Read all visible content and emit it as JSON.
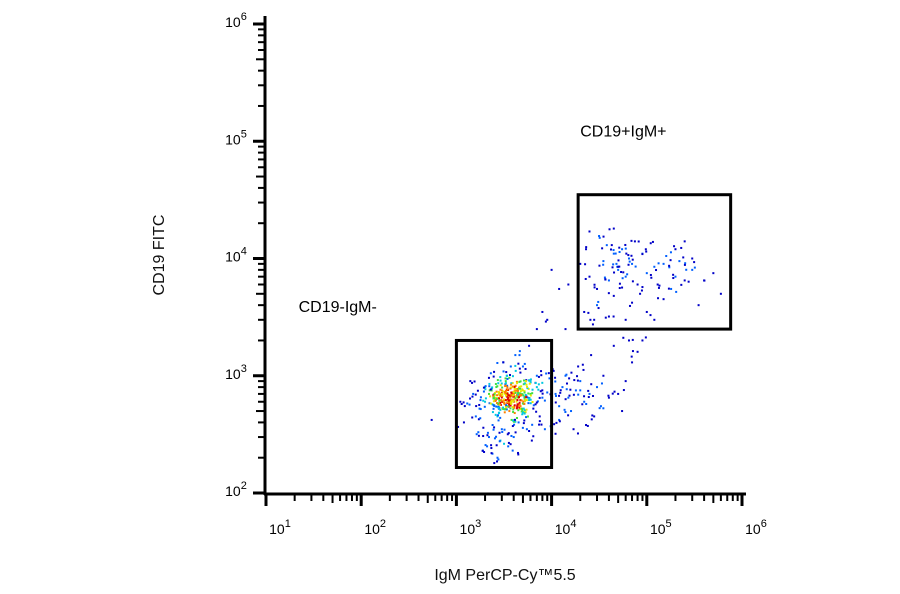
{
  "chart_data": {
    "type": "scatter",
    "subtype": "flow-cytometry density dot plot",
    "xlabel": "IgM PerCP-Cy™5.5",
    "ylabel": "CD19 FITC",
    "xscale": "log",
    "yscale": "log",
    "xlim": [
      10,
      1000000
    ],
    "ylim": [
      100,
      1000000
    ],
    "x_ticks": [
      "10^1",
      "10^2",
      "10^3",
      "10^4",
      "10^5",
      "10^6"
    ],
    "y_ticks": [
      "10^2",
      "10^3",
      "10^4",
      "10^5",
      "10^6"
    ],
    "grid": false,
    "density_colors": [
      "#0000c8",
      "#0060ff",
      "#00c8e0",
      "#40e040",
      "#e8e800",
      "#ff8000",
      "#e00000"
    ],
    "gates": [
      {
        "name": "lower-gate",
        "x": [
          1000,
          10000
        ],
        "y": [
          165,
          2000
        ]
      },
      {
        "name": "upper-gate",
        "x": [
          19000,
          760000
        ],
        "y": [
          2500,
          35000
        ]
      }
    ],
    "annotations": [
      {
        "text": "CD19+IgM+",
        "x": 20000,
        "y": 110000
      },
      {
        "text": "CD19-IgM-",
        "x": 22,
        "y": 3500
      }
    ],
    "points": [
      [
        3500,
        650
      ],
      [
        3000,
        700
      ],
      [
        4000,
        600
      ],
      [
        3800,
        720
      ],
      [
        3200,
        580
      ],
      [
        2800,
        640
      ],
      [
        4500,
        680
      ],
      [
        2500,
        560
      ],
      [
        5000,
        750
      ],
      [
        3600,
        500
      ],
      [
        4200,
        820
      ],
      [
        2200,
        700
      ],
      [
        3300,
        900
      ],
      [
        2700,
        450
      ],
      [
        6000,
        700
      ],
      [
        5500,
        620
      ],
      [
        4800,
        520
      ],
      [
        2000,
        600
      ],
      [
        1800,
        520
      ],
      [
        1600,
        450
      ],
      [
        2400,
        380
      ],
      [
        3000,
        350
      ],
      [
        3800,
        420
      ],
      [
        4500,
        400
      ],
      [
        5200,
        480
      ],
      [
        6500,
        560
      ],
      [
        7000,
        800
      ],
      [
        8000,
        650
      ],
      [
        9000,
        720
      ],
      [
        2600,
        850
      ],
      [
        3400,
        1000
      ],
      [
        4200,
        1100
      ],
      [
        5000,
        1200
      ],
      [
        2000,
        800
      ],
      [
        1500,
        700
      ],
      [
        1300,
        580
      ],
      [
        1200,
        400
      ],
      [
        1700,
        330
      ],
      [
        2200,
        300
      ],
      [
        2900,
        280
      ],
      [
        3500,
        250
      ],
      [
        4000,
        300
      ],
      [
        5500,
        350
      ],
      [
        7500,
        450
      ],
      [
        6000,
        900
      ],
      [
        1400,
        900
      ],
      [
        2300,
        1050
      ],
      [
        3100,
        1300
      ],
      [
        4600,
        1500
      ],
      [
        5800,
        1800
      ],
      [
        1100,
        600
      ],
      [
        1000,
        900
      ],
      [
        2100,
        250
      ],
      [
        2700,
        200
      ],
      [
        3900,
        230
      ],
      [
        6200,
        280
      ],
      [
        1900,
        230
      ],
      [
        2500,
        180
      ],
      [
        8500,
        350
      ],
      [
        7000,
        1000
      ],
      [
        3700,
        780
      ],
      [
        3300,
        620
      ],
      [
        4100,
        560
      ],
      [
        2900,
        760
      ],
      [
        4400,
        740
      ],
      [
        3600,
        680
      ],
      [
        3100,
        520
      ],
      [
        4700,
        620
      ],
      [
        2600,
        620
      ],
      [
        5300,
        860
      ],
      [
        11000,
        700
      ],
      [
        13000,
        800
      ],
      [
        15000,
        650
      ],
      [
        12000,
        550
      ],
      [
        18000,
        750
      ],
      [
        20000,
        900
      ],
      [
        25000,
        700
      ],
      [
        14000,
        1000
      ],
      [
        16000,
        500
      ],
      [
        22000,
        600
      ],
      [
        30000,
        800
      ],
      [
        35000,
        1000
      ],
      [
        40000,
        650
      ],
      [
        28000,
        450
      ],
      [
        50000,
        700
      ],
      [
        60000,
        900
      ],
      [
        12000,
        420
      ],
      [
        10500,
        1100
      ],
      [
        19000,
        1200
      ],
      [
        26000,
        1500
      ],
      [
        45000,
        1800
      ],
      [
        70000,
        1300
      ],
      [
        80000,
        1600
      ],
      [
        17000,
        350
      ],
      [
        23000,
        380
      ],
      [
        11000,
        320
      ],
      [
        9500,
        950
      ],
      [
        33000,
        550
      ],
      [
        55000,
        500
      ],
      [
        90000,
        2000
      ],
      [
        65000,
        2000
      ],
      [
        14000,
        2500
      ],
      [
        8000,
        3500
      ],
      [
        9000,
        3000
      ],
      [
        7000,
        2500
      ],
      [
        12000,
        5500
      ],
      [
        15000,
        6000
      ],
      [
        10000,
        8000
      ],
      [
        550,
        420
      ],
      [
        60000,
        7000
      ],
      [
        50000,
        8000
      ],
      [
        40000,
        6500
      ],
      [
        70000,
        9000
      ],
      [
        80000,
        6000
      ],
      [
        100000,
        7500
      ],
      [
        120000,
        8500
      ],
      [
        30000,
        5500
      ],
      [
        25000,
        7000
      ],
      [
        35000,
        9500
      ],
      [
        45000,
        11000
      ],
      [
        55000,
        12000
      ],
      [
        65000,
        10000
      ],
      [
        90000,
        11000
      ],
      [
        150000,
        9000
      ],
      [
        200000,
        7000
      ],
      [
        250000,
        6500
      ],
      [
        300000,
        8000
      ],
      [
        400000,
        6500
      ],
      [
        500000,
        7500
      ],
      [
        600000,
        5000
      ],
      [
        350000,
        4000
      ],
      [
        150000,
        4500
      ],
      [
        100000,
        3500
      ],
      [
        70000,
        4200
      ],
      [
        45000,
        4800
      ],
      [
        30000,
        4000
      ],
      [
        22000,
        3500
      ],
      [
        28000,
        3000
      ],
      [
        40000,
        3200
      ],
      [
        60000,
        3000
      ],
      [
        120000,
        3000
      ],
      [
        200000,
        12000
      ],
      [
        250000,
        14000
      ],
      [
        180000,
        5500
      ],
      [
        130000,
        6000
      ],
      [
        85000,
        5000
      ],
      [
        48000,
        9000
      ],
      [
        38000,
        13000
      ],
      [
        25000,
        17000
      ],
      [
        32000,
        15000
      ],
      [
        45000,
        18000
      ],
      [
        75000,
        14000
      ],
      [
        110000,
        13500
      ],
      [
        160000,
        10500
      ],
      [
        220000,
        9500
      ],
      [
        300000,
        10000
      ],
      [
        20000,
        9000
      ],
      [
        23000,
        12000
      ],
      [
        52000,
        5600
      ]
    ]
  }
}
